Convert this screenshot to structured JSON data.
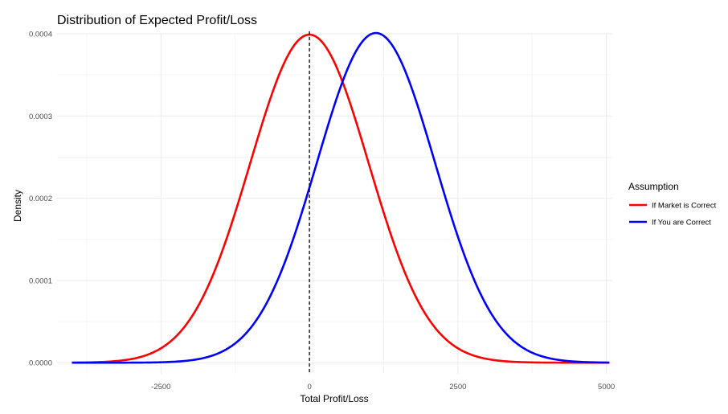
{
  "chart_data": {
    "type": "line",
    "title": "Distribution of Expected Profit/Loss",
    "xlabel": "Total Profit/Loss",
    "ylabel": "Density",
    "xlim": [
      -4250,
      5100
    ],
    "ylim": [
      -1.35e-05,
      0.0004
    ],
    "x_ticks": [
      -2500,
      0,
      2500,
      5000
    ],
    "x_tick_labels": [
      "-2500",
      "0",
      "2500",
      "5000"
    ],
    "y_ticks": [
      0,
      0.0001,
      0.0002,
      0.0003,
      0.0004
    ],
    "y_tick_labels": [
      "0.0000",
      "0.0001",
      "0.0002",
      "0.0003",
      "0.0004"
    ],
    "grid": true,
    "reference_line": {
      "x": 0,
      "style": "dashed"
    },
    "legend": {
      "title": "Assumption",
      "position": "right"
    },
    "series": [
      {
        "name": "If Market is Correct",
        "color": "#ff0000",
        "distribution": "normal",
        "mean": 0,
        "sd": 1000,
        "x_range": [
          -4000,
          5050
        ]
      },
      {
        "name": "If You are Correct",
        "color": "#0000ff",
        "distribution": "normal",
        "mean": 1120,
        "sd": 995,
        "x_range": [
          -4000,
          5050
        ]
      }
    ]
  }
}
